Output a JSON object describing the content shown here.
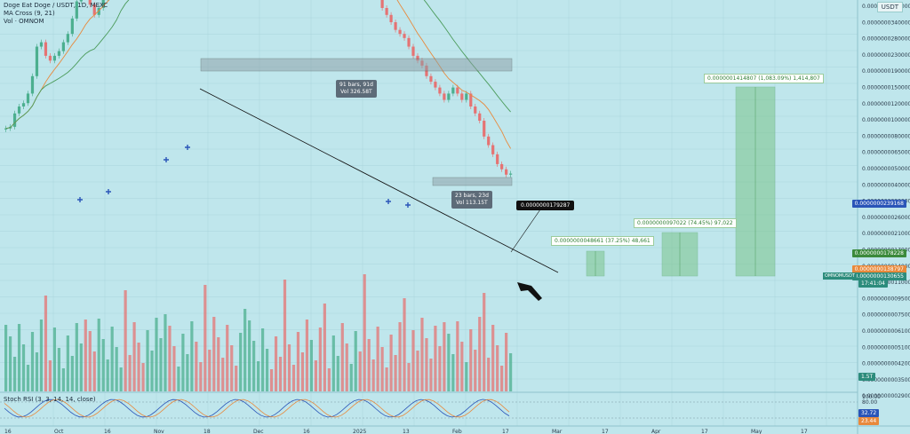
{
  "legend": {
    "title": "Doge Eat Doge / USDT, 1D, MEXC",
    "ma": "MA Cross (9, 21)",
    "vol": "Vol · OMNOM",
    "stoch": "Stoch RSI (3, 3, 14, 14, close)"
  },
  "currency_button": "USDT",
  "annotations": {
    "range1_bars": "91 bars, 91d",
    "range1_vol": "Vol 326.58T",
    "range2_bars": "23 bars, 23d",
    "range2_vol": "Vol 113.15T",
    "trendline_price": "0.0000000179287",
    "target1": "0.0000000048661 (37.25%) 48,661",
    "target2": "0.0000000097022 (74.45%) 97,022",
    "target3": "0.0000001414807 (1,083.09%) 1,414,807"
  },
  "price_axis": {
    "ticks": [
      "0.0000000420000",
      "0.0000000340000",
      "0.0000000280000",
      "0.0000000230000",
      "0.0000000190000",
      "0.0000000150000",
      "0.0000000120000",
      "0.0000000100000",
      "0.0000000080000",
      "0.0000000065000",
      "0.0000000050000",
      "0.0000000040000",
      "0.0000000033000",
      "0.0000000026000",
      "0.0000000021000",
      "0.0000000017000",
      "0.0000000014000",
      "0.0000000011000",
      "0.0000000009500",
      "0.0000000007500",
      "0.0000000006100",
      "0.0000000005100",
      "0.0000000004200",
      "0.0000000003500",
      "0.0000000002900"
    ],
    "tag_blue": "0.0000000239168",
    "tag_green": "0.0000000178228",
    "tag_orange": "0.0000000138797",
    "tag_current": "0.0000000130655",
    "tag_countdown": "17:41:04",
    "tag_symbol": "OMNOMUSDT",
    "tag_volume": "1.5T",
    "stoch_100": "100.00",
    "stoch_80": "80.00",
    "stoch_k": "32.72",
    "stoch_d": "23.44"
  },
  "time_axis": [
    "16",
    "Oct",
    "16",
    "Nov",
    "18",
    "Dec",
    "16",
    "2025",
    "13",
    "Feb",
    "17",
    "Mar",
    "17",
    "Apr",
    "17",
    "May",
    "17"
  ],
  "colors": {
    "bg": "#bfe6ec",
    "up": "#4caf8f",
    "down": "#e57373",
    "ma_fast": "#e8893c",
    "ma_slow": "#4c9c5c",
    "target": "#7bc48a"
  },
  "chart_data": {
    "type": "candlestick",
    "series": [
      {
        "name": "price",
        "values": [
          1.8e-08,
          1.82e-08,
          2e-08,
          2.1e-08,
          2.15e-08,
          2.3e-08,
          2.6e-08,
          3.2e-08,
          3.3e-08,
          3e-08,
          2.9e-08,
          3e-08,
          3.1e-08,
          3.3e-08,
          3.5e-08,
          3.9e-08,
          4.4e-08,
          4.8e-08,
          4.7e-08,
          4.3e-08,
          4e-08,
          4.2e-08,
          4.5e-08,
          4.8e-08,
          5.2e-08,
          6.1e-08,
          7.7e-08,
          7e-08,
          6.5e-08,
          6.2e-08,
          6e-08,
          5.6e-08,
          5.6e-08,
          6e-08,
          6.4e-08,
          6.4e-08,
          6.6e-08,
          6.4e-08,
          6.2e-08,
          6.2e-08,
          6.8e-08,
          7.8e-08,
          8e-08,
          7.8e-08,
          7.4e-08,
          7e-08,
          6.5e-08,
          6e-08,
          5.8e-08,
          5.6e-08,
          5.2e-08,
          5e-08,
          4.8e-08,
          5.6e-08,
          6e-08,
          7e-08,
          7.6e-08,
          8.2e-08,
          9.9e-08,
          1.08e-07,
          9.2e-08,
          8.5e-08,
          8.3e-08,
          8.2e-08,
          7.8e-08,
          7.5e-08,
          7.2e-08,
          7e-08,
          6.9e-08,
          7e-08,
          6.8e-08,
          6.5e-08,
          6.2e-08,
          6e-08,
          6.2e-08,
          6.3e-08,
          6e-08,
          5.6e-08,
          5.6e-08,
          5.7e-08,
          5.6e-08,
          5.2e-08,
          5e-08,
          4.8e-08,
          4.6e-08,
          4.2e-08,
          4e-08,
          3.8e-08,
          3.6e-08,
          3.5e-08,
          3.4e-08,
          3.2e-08,
          3e-08,
          2.9e-08,
          2.8e-08,
          2.6e-08,
          2.5e-08,
          2.4e-08,
          2.3e-08,
          2.2e-08,
          2.3e-08,
          2.4e-08,
          2.3e-08,
          2.2e-08,
          2.3e-08,
          2.1e-08,
          2e-08,
          1.9e-08,
          1.7e-08,
          1.6e-08,
          1.5e-08,
          1.4e-08,
          1.35e-08,
          1.3e-08,
          1.31e-08
        ]
      }
    ],
    "ylabel": "",
    "scale": "log"
  }
}
